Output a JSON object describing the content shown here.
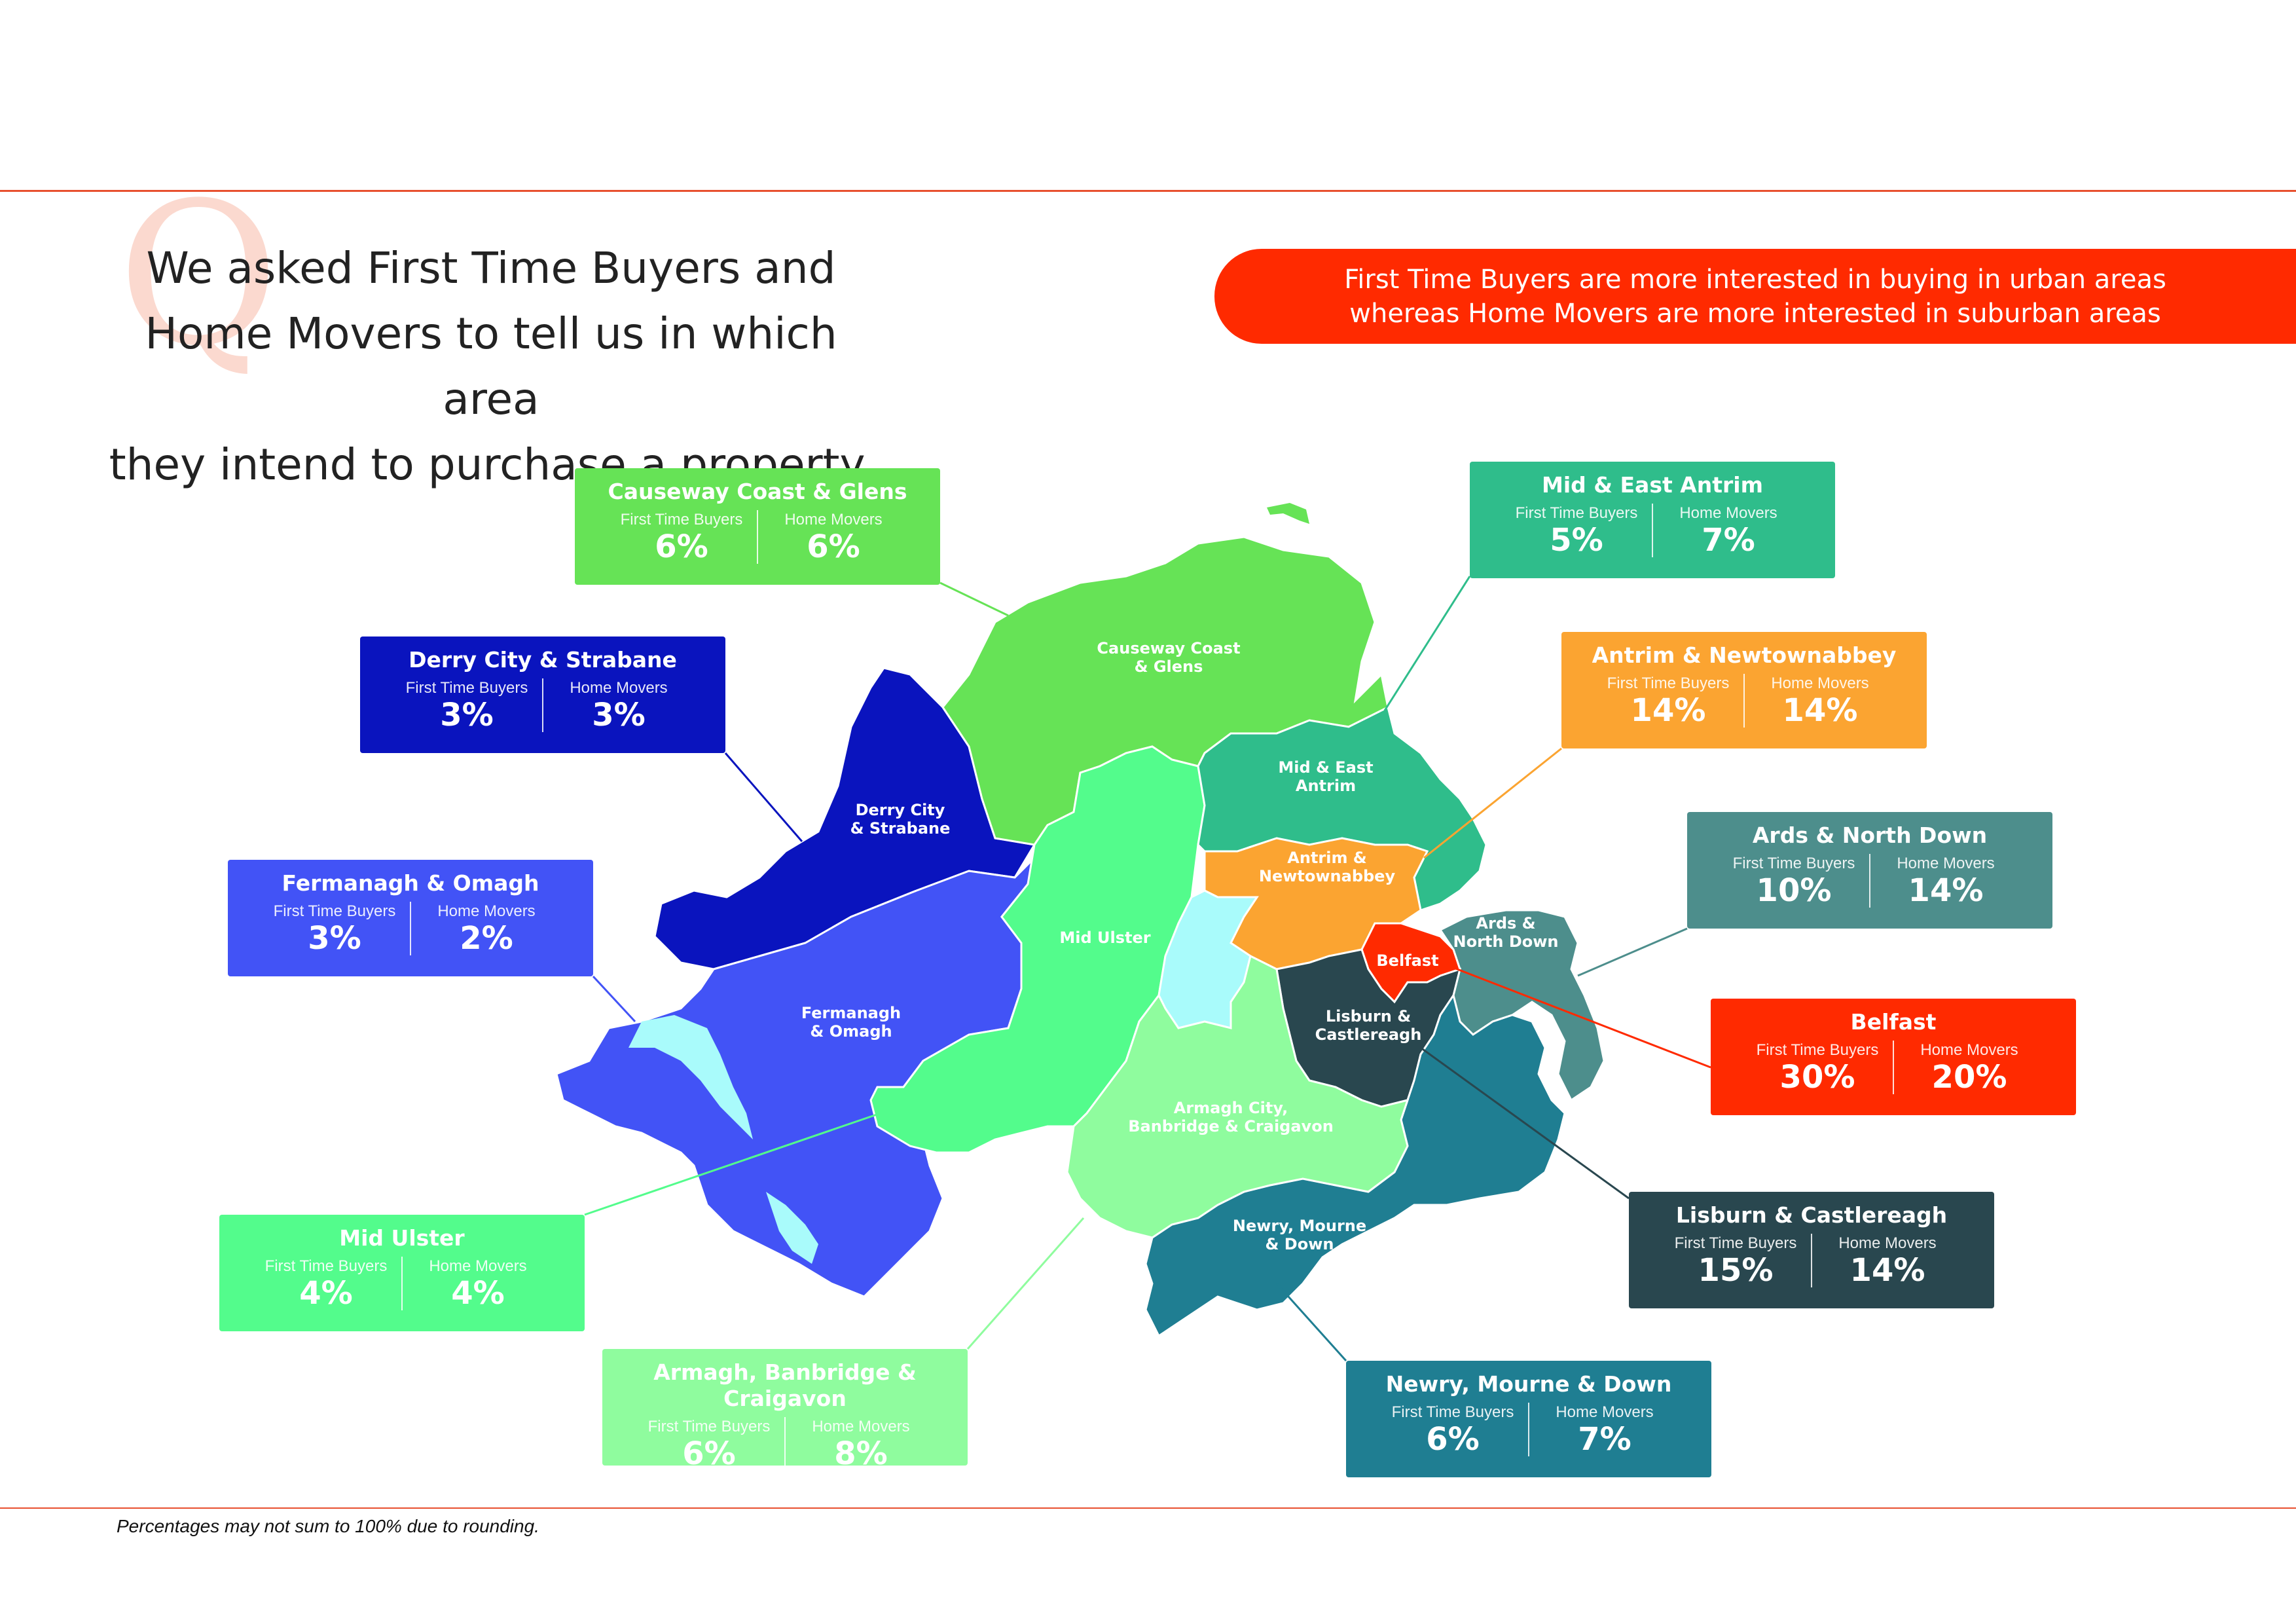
{
  "heading": {
    "line1": "We asked First Time Buyers and",
    "line2": "Home Movers to tell us in which area",
    "line3": "they intend to purchase a property."
  },
  "banner": {
    "line1": "First Time Buyers are more interested in buying in urban areas",
    "line2": "whereas Home Movers are more interested in suburban areas",
    "color": "#ff2a00"
  },
  "labels": {
    "ftb": "First Time Buyers",
    "hm": "Home Movers"
  },
  "regions": [
    {
      "key": "causeway",
      "name": "Causeway Coast & Glens",
      "map_label": "Causeway Coast & Glens",
      "ftb": "6%",
      "hm": "6%",
      "color": "#66e356"
    },
    {
      "key": "derry",
      "name": "Derry City & Strabane",
      "map_label": "Derry City & Strabane",
      "ftb": "3%",
      "hm": "3%",
      "color": "#0a14be"
    },
    {
      "key": "fermanagh",
      "name": "Fermanagh & Omagh",
      "map_label": "Fermanagh & Omagh",
      "ftb": "3%",
      "hm": "2%",
      "color": "#4253f6"
    },
    {
      "key": "midulster",
      "name": "Mid Ulster",
      "map_label": "Mid Ulster",
      "ftb": "4%",
      "hm": "4%",
      "color": "#53fc8c"
    },
    {
      "key": "armagh",
      "name": "Armagh, Banbridge & Craigavon",
      "map_label": "Armagh City, Banbridge & Craigavon",
      "ftb": "6%",
      "hm": "8%",
      "color": "#8ffc9e"
    },
    {
      "key": "midantrim",
      "name": "Mid & East Antrim",
      "map_label": "Mid & East Antrim",
      "ftb": "5%",
      "hm": "7%",
      "color": "#2fbd8b"
    },
    {
      "key": "antrim",
      "name": "Antrim & Newtownabbey",
      "map_label": "Antrim & Newtownabbey",
      "ftb": "14%",
      "hm": "14%",
      "color": "#fba431"
    },
    {
      "key": "ards",
      "name": "Ards & North Down",
      "map_label": "Ards & North Down",
      "ftb": "10%",
      "hm": "14%",
      "color": "#4d8e8c"
    },
    {
      "key": "belfast",
      "name": "Belfast",
      "map_label": "Belfast",
      "ftb": "30%",
      "hm": "20%",
      "color": "#ff2a00"
    },
    {
      "key": "lisburn",
      "name": "Lisburn & Castlereagh",
      "map_label": "Lisburn & Castlereagh",
      "ftb": "15%",
      "hm": "14%",
      "color": "#29474f"
    },
    {
      "key": "newry",
      "name": "Newry, Mourne & Down",
      "map_label": "Newry, Mourne & Down",
      "ftb": "6%",
      "hm": "7%",
      "color": "#1f7e92"
    }
  ],
  "lough_color": "#a9fbfb",
  "rule_color": "#e8502f",
  "footnote": "Percentages may not sum to 100% due to rounding."
}
